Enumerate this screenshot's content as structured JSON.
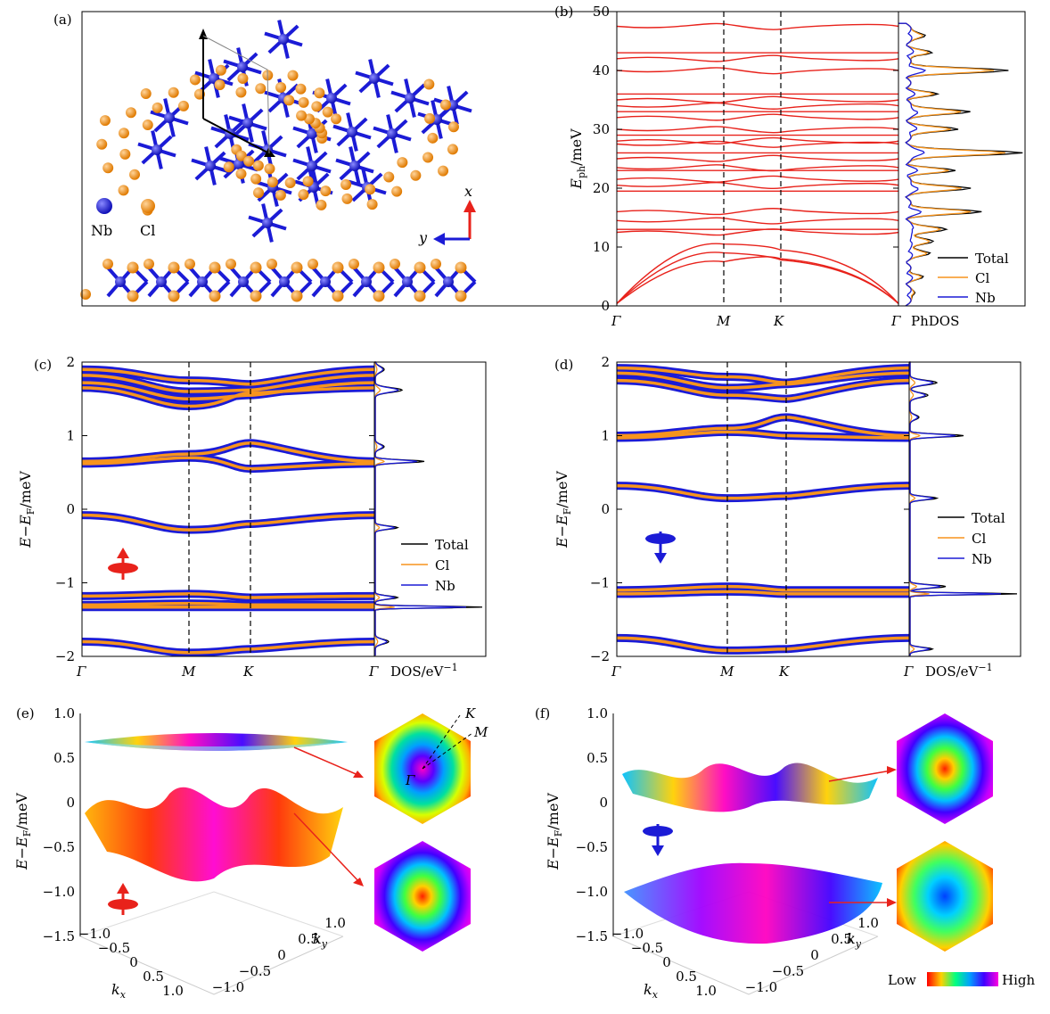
{
  "panel_labels": [
    "(a)",
    "(b)",
    "(c)",
    "(d)",
    "(e)",
    "(f)"
  ],
  "legend_atoms": [
    "Nb",
    "Cl"
  ],
  "axis_arrows": {
    "x": "x",
    "y": "y"
  },
  "colors": {
    "nb": "#1b1bd6",
    "cl": "#f7941d",
    "band": "#e8221b",
    "total": "#000000",
    "arrow": "#e8221b",
    "axis_blue": "#1b1bd6"
  },
  "k_path": [
    "Γ",
    "M",
    "K",
    "Γ"
  ],
  "phdos_label": "PhDOS",
  "dos_label": "DOS/eV",
  "dos_sup": "−1",
  "legend": [
    "Total",
    "Cl",
    "Nb"
  ],
  "hex_k_labels": [
    "K",
    "M",
    "Γ"
  ],
  "colorbar": {
    "low": "Low",
    "high": "High"
  },
  "chart_data": [
    {
      "type": "line",
      "panel": "(b)",
      "ylabel": "E_ph/meV",
      "ylim": [
        0,
        50
      ],
      "yticks": [
        0,
        10,
        20,
        30,
        40,
        50
      ],
      "xtick_labels": [
        "Γ",
        "M",
        "K",
        "Γ"
      ],
      "series_legend": [
        "Total",
        "Cl",
        "Nb"
      ]
    },
    {
      "type": "line",
      "panel": "(c)",
      "ylabel": "E−E_F/meV",
      "ylim": [
        -2,
        2
      ],
      "yticks": [
        -2,
        -1,
        0,
        1,
        2
      ],
      "xtick_labels": [
        "Γ",
        "M",
        "K",
        "Γ"
      ],
      "series_legend": [
        "Total",
        "Cl",
        "Nb"
      ]
    },
    {
      "type": "line",
      "panel": "(d)",
      "ylabel": "E−E_F/meV",
      "ylim": [
        -2,
        2
      ],
      "yticks": [
        -2,
        -1,
        0,
        1,
        2
      ],
      "xtick_labels": [
        "Γ",
        "M",
        "K",
        "Γ"
      ],
      "series_legend": [
        "Total",
        "Cl",
        "Nb"
      ]
    },
    {
      "type": "area",
      "panel": "(e)",
      "ylabel": "E−E_F/meV",
      "zticks": [
        1.0,
        0.5,
        0,
        -0.5,
        -1.0,
        -1.5
      ],
      "kx_ticks": [
        -1.0,
        -0.5,
        0,
        0.5,
        1.0
      ],
      "ky_ticks": [
        -1.0,
        -0.5,
        0,
        0.5,
        1.0
      ],
      "xlabel": "k_x",
      "ylabel2": "k_y"
    },
    {
      "type": "area",
      "panel": "(f)",
      "ylabel": "E−E_F/meV",
      "zticks": [
        1.0,
        0.5,
        0,
        -0.5,
        -1.0,
        -1.5
      ],
      "kx_ticks": [
        -1.0,
        -0.5,
        0,
        0.5,
        1.0
      ],
      "ky_ticks": [
        -1.0,
        -0.5,
        0,
        0.5,
        1.0
      ],
      "xlabel": "k_x",
      "ylabel2": "k_y"
    }
  ]
}
